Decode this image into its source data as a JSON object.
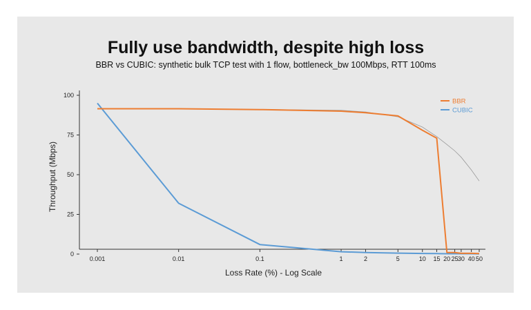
{
  "chart_data": {
    "type": "line",
    "title": "Fully use bandwidth, despite high loss",
    "subtitle": "BBR vs CUBIC: synthetic bulk TCP test with 1 flow, bottleneck_bw 100Mbps, RTT 100ms",
    "xlabel": "Loss Rate (%) - Log Scale",
    "ylabel": "Throughput (Mbps)",
    "x_scale": "log",
    "xlim": [
      0.001,
      50
    ],
    "ylim": [
      0,
      100
    ],
    "x_ticks": [
      0.001,
      0.01,
      0.1,
      1,
      2,
      5,
      10,
      15,
      20,
      25,
      30,
      40,
      50
    ],
    "x_tick_labels": [
      "0.001",
      "0.01",
      "0.1",
      "1",
      "2",
      "5",
      "10",
      "15",
      "20",
      "25",
      "30",
      "40",
      "50"
    ],
    "y_ticks": [
      0,
      25,
      50,
      75,
      100
    ],
    "y_tick_labels": [
      "0",
      "25",
      "50",
      "75",
      "100"
    ],
    "grid": false,
    "legend_position": "top-right",
    "series": [
      {
        "name": "BBR",
        "color": "#ed7d31",
        "x": [
          0.001,
          0.01,
          0.1,
          1,
          2,
          5,
          10,
          15,
          20,
          25,
          30,
          40,
          50
        ],
        "y": [
          91.5,
          91.5,
          91,
          90,
          89,
          87,
          78,
          73,
          1,
          1,
          0.5,
          0.5,
          0.3
        ]
      },
      {
        "name": "CUBIC",
        "color": "#5b9bd5",
        "x": [
          0.001,
          0.01,
          0.1,
          1,
          2,
          5,
          10,
          15,
          20,
          25,
          30,
          40,
          50
        ],
        "y": [
          95,
          32,
          6,
          1.5,
          1,
          0.6,
          0.4,
          0.3,
          0.2,
          0.2,
          0.2,
          0.2,
          0.1
        ]
      }
    ],
    "reference_curve": {
      "color": "#999999",
      "x": [
        0.001,
        0.01,
        0.1,
        1,
        2,
        5,
        10,
        15,
        20,
        25,
        30,
        40,
        50
      ],
      "y": [
        91.5,
        91.5,
        91.1,
        90.5,
        89.5,
        86.5,
        80,
        74,
        69,
        65,
        61,
        53,
        46
      ]
    }
  }
}
